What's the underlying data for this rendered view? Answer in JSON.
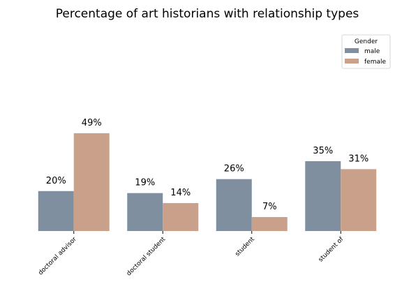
{
  "chart_data": {
    "type": "bar",
    "title": "Percentage of art historians with relationship types",
    "xlabel": "",
    "ylabel": "",
    "categories": [
      "doctoral advisor",
      "doctoral student",
      "student",
      "student of"
    ],
    "series": [
      {
        "name": "male",
        "values": [
          20,
          19,
          26,
          35
        ],
        "labels": [
          "20%",
          "19%",
          "26%",
          "35%"
        ]
      },
      {
        "name": "female",
        "values": [
          49,
          14,
          7,
          31
        ],
        "labels": [
          "49%",
          "14%",
          "7%",
          "31%"
        ]
      }
    ],
    "ylim": [
      0,
      100
    ],
    "grid": false,
    "legend": {
      "title": "Gender",
      "placement": "top-right"
    },
    "colors": {
      "male": "#7f8fa0",
      "female": "#c9a089"
    }
  }
}
